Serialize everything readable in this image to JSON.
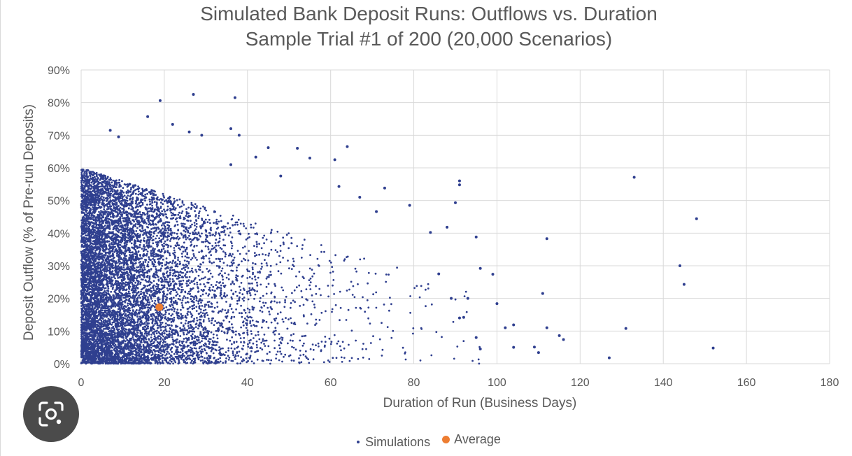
{
  "chart_data": {
    "type": "scatter",
    "title": "Simulated Bank Deposit Runs: Outflows vs. Duration",
    "subtitle": "Sample Trial #1 of 200 (20,000 Scenarios)",
    "xlabel": "Duration of Run (Business Days)",
    "ylabel": "Deposit Outflow (% of Pre-run Deposits)",
    "xlim": [
      0,
      180
    ],
    "ylim": [
      0,
      0.9
    ],
    "x_ticks": [
      "0",
      "20",
      "40",
      "60",
      "80",
      "100",
      "120",
      "140",
      "160",
      "180"
    ],
    "y_ticks": [
      "0%",
      "10%",
      "20%",
      "30%",
      "40%",
      "50%",
      "60%",
      "70%",
      "80%",
      "90%"
    ],
    "grid": "on",
    "legend_position": "bottom",
    "series": [
      {
        "name": "Simulations",
        "color": "#2f3f8f",
        "marker": "small-dot",
        "points": [
          [
            19,
            0.806
          ],
          [
            27,
            0.825
          ],
          [
            37,
            0.815
          ],
          [
            16,
            0.757
          ],
          [
            22,
            0.733
          ],
          [
            7,
            0.715
          ],
          [
            26,
            0.71
          ],
          [
            36,
            0.72
          ],
          [
            29,
            0.7
          ],
          [
            38,
            0.7
          ],
          [
            9,
            0.695
          ],
          [
            45,
            0.662
          ],
          [
            52,
            0.66
          ],
          [
            64,
            0.665
          ],
          [
            42,
            0.633
          ],
          [
            55,
            0.63
          ],
          [
            61,
            0.625
          ],
          [
            36,
            0.61
          ],
          [
            48,
            0.575
          ],
          [
            91,
            0.56
          ],
          [
            91,
            0.548
          ],
          [
            133,
            0.571
          ],
          [
            73,
            0.538
          ],
          [
            62,
            0.543
          ],
          [
            67,
            0.51
          ],
          [
            79,
            0.485
          ],
          [
            90,
            0.493
          ],
          [
            71,
            0.466
          ],
          [
            88,
            0.418
          ],
          [
            84,
            0.402
          ],
          [
            95,
            0.388
          ],
          [
            112,
            0.383
          ],
          [
            148,
            0.444
          ],
          [
            144,
            0.3
          ],
          [
            145,
            0.243
          ],
          [
            96,
            0.292
          ],
          [
            99,
            0.274
          ],
          [
            111,
            0.215
          ],
          [
            100,
            0.184
          ],
          [
            102,
            0.11
          ],
          [
            104,
            0.119
          ],
          [
            115,
            0.086
          ],
          [
            116,
            0.074
          ],
          [
            112,
            0.11
          ],
          [
            104,
            0.05
          ],
          [
            109,
            0.051
          ],
          [
            110,
            0.034
          ],
          [
            131,
            0.108
          ],
          [
            127,
            0.018
          ],
          [
            152,
            0.048
          ],
          [
            95,
            0.08
          ],
          [
            96,
            0.045
          ],
          [
            91,
            0.14
          ],
          [
            92,
            0.142
          ],
          [
            86,
            0.275
          ],
          [
            89,
            0.2
          ],
          [
            93,
            0.2
          ]
        ]
      },
      {
        "name": "Average",
        "color": "#ed7d31",
        "marker": "large-dot",
        "points": [
          [
            18.8,
            0.173
          ]
        ]
      }
    ]
  },
  "legend": {
    "simulations_label": "Simulations",
    "average_label": "Average"
  },
  "lens_icon": "google-lens-icon"
}
